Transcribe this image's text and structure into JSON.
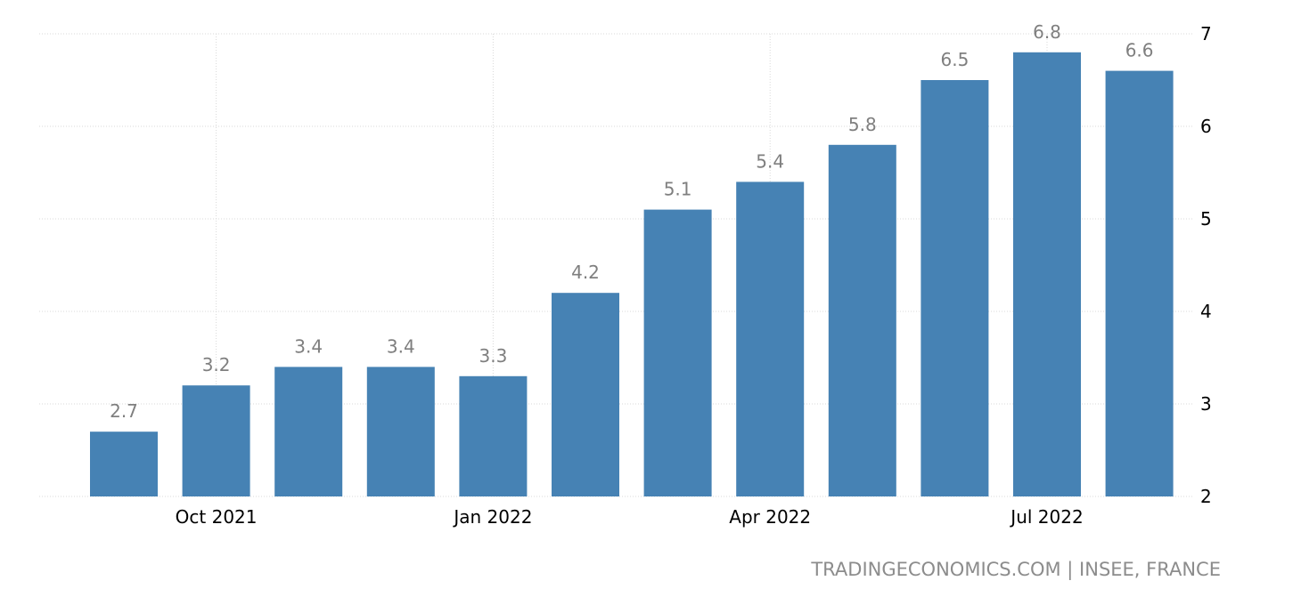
{
  "chart_data": {
    "type": "bar",
    "categories": [
      "Sep 2021",
      "Oct 2021",
      "Nov 2021",
      "Dec 2021",
      "Jan 2022",
      "Feb 2022",
      "Mar 2022",
      "Apr 2022",
      "May 2022",
      "Jun 2022",
      "Jul 2022",
      "Aug 2022"
    ],
    "values": [
      2.7,
      3.2,
      3.4,
      3.4,
      3.3,
      4.2,
      5.1,
      5.4,
      5.8,
      6.5,
      6.8,
      6.6
    ],
    "x_tick_labels": [
      {
        "category": "Oct 2021",
        "label": "Oct 2021"
      },
      {
        "category": "Jan 2022",
        "label": "Jan 2022"
      },
      {
        "category": "Apr 2022",
        "label": "Apr 2022"
      },
      {
        "category": "Jul 2022",
        "label": "Jul 2022"
      }
    ],
    "y_ticks": [
      2,
      3,
      4,
      5,
      6,
      7
    ],
    "ylim": [
      2,
      7
    ],
    "y_axis_position": "right",
    "grid": true,
    "data_labels": true,
    "bar_color": "#4682b4",
    "data_label_color": "#7f7f7f",
    "title": "",
    "xlabel": "",
    "ylabel": ""
  },
  "source_text": "TRADINGECONOMICS.COM | INSEE, FRANCE"
}
